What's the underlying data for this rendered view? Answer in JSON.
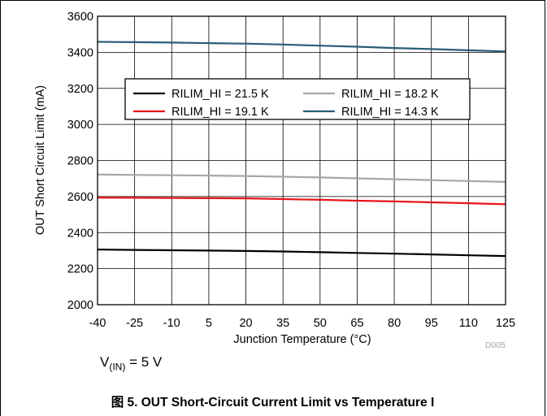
{
  "chart_data": {
    "type": "line",
    "xlabel": "Junction Temperature (°C)",
    "ylabel": "OUT Short Circuit Limit (mA)",
    "x_ticks": [
      -40,
      -25,
      -10,
      5,
      20,
      35,
      50,
      65,
      80,
      95,
      110,
      125
    ],
    "y_ticks": [
      2000,
      2200,
      2400,
      2600,
      2800,
      3000,
      3200,
      3400,
      3600
    ],
    "xlim": [
      -40,
      125
    ],
    "ylim": [
      2000,
      3600
    ],
    "grid": true,
    "legend_position": "upper-center",
    "series": [
      {
        "name": "RILIM_HI = 21.5 K",
        "color": "#000000",
        "x": [
          -40,
          -25,
          -10,
          5,
          20,
          35,
          50,
          65,
          80,
          95,
          110,
          125
        ],
        "y": [
          2306,
          2304,
          2302,
          2300,
          2298,
          2295,
          2291,
          2287,
          2283,
          2279,
          2274,
          2270
        ]
      },
      {
        "name": "RILIM_HI = 18.2 K",
        "color": "#a6a6a6",
        "x": [
          -40,
          -25,
          -10,
          5,
          20,
          35,
          50,
          65,
          80,
          95,
          110,
          125
        ],
        "y": [
          2722,
          2720,
          2718,
          2716,
          2714,
          2710,
          2706,
          2701,
          2696,
          2691,
          2686,
          2681
        ]
      },
      {
        "name": "RILIM_HI = 19.1 K",
        "color": "#e8141b",
        "x": [
          -40,
          -25,
          -10,
          5,
          20,
          35,
          50,
          65,
          80,
          95,
          110,
          125
        ],
        "y": [
          2594,
          2593,
          2592,
          2591,
          2590,
          2586,
          2582,
          2577,
          2573,
          2568,
          2563,
          2557
        ]
      },
      {
        "name": "RILIM_HI = 14.3 K",
        "color": "#2a5d78",
        "x": [
          -40,
          -25,
          -10,
          5,
          20,
          35,
          50,
          65,
          80,
          95,
          110,
          125
        ],
        "y": [
          3458,
          3456,
          3454,
          3451,
          3448,
          3443,
          3437,
          3431,
          3424,
          3418,
          3411,
          3405
        ]
      }
    ]
  },
  "watermark": "D005",
  "condition": {
    "prefix": "V",
    "subscript": "(IN)",
    "suffix": " = 5 V"
  },
  "caption": "图 5. OUT Short-Circuit Current Limit vs Temperature I"
}
